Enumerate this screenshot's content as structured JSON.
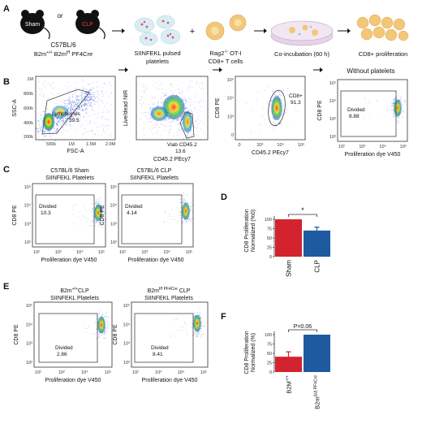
{
  "panels": {
    "A": "A",
    "B": "B",
    "C": "C",
    "D": "D",
    "E": "E",
    "F": "F"
  },
  "panelA": {
    "mouse1": "Sham",
    "or": "or",
    "mouse2": "CLP",
    "strain1": "C57BL/6",
    "strain2_base": "B2m",
    "strain2_sup1": "+/+",
    "strain2_sep": " B2m",
    "strain2_sup2": "f/f",
    "strain2_cre": " PF4Cre",
    "step2_line1": "SIINFEKL pulsed",
    "step2_line2": "platelets",
    "plus": "+",
    "step3_base": "Rag2",
    "step3_sup": "-/-",
    "step3_rest": " OT-I",
    "step3_line2": "CD8+ T cells",
    "step4": "Co-incubation (60 h)",
    "step5": "CD8+ proliferation",
    "colors": {
      "sham_mouse": "#111111",
      "clp_text": "#e8403a",
      "platelet": "#d8eef3",
      "platelet_dot": "#e04b8a",
      "tcell": "#f2c77a",
      "dish": "#e6d3e8"
    }
  },
  "panelB": {
    "plot1": {
      "ylabel": "SSC-A",
      "xlabel": "FSC-A",
      "gate_name": "Lymphoytes",
      "gate_value": "39.5",
      "yticks": [
        "1M",
        "800k",
        "600k",
        "400k",
        "200k"
      ],
      "xticks": [
        "500k",
        "1M",
        "1.5M",
        "2.0M"
      ]
    },
    "plot2": {
      "ylabel": "Live/dead NIR",
      "xlabel": "CD45.2 PEcy7",
      "gate_name": "Viab CD45.2",
      "gate_value": "13.6"
    },
    "plot3": {
      "ylabel": "CD8 PE",
      "xlabel": "CD45.2 PEcy7",
      "gate_name": "CD8+",
      "gate_value": "91.3"
    },
    "plot4": {
      "title": "Without platelets",
      "ylabel": "CD8 PE",
      "xlabel": "Proliferation dye V450",
      "gate_name": "Divided",
      "gate_value": "8.88"
    }
  },
  "panelC": {
    "plot1": {
      "title1": "C57BL/6 Sham",
      "title2": "SIINFEKL Platelets",
      "gate_name": "Divided",
      "gate_value": "10.3",
      "ylabel": "CD8 PE",
      "xlabel": "Proliferation dye V450"
    },
    "plot2": {
      "title1": "C57BL/6 CLP",
      "title2": "SIINFEKL Platelets",
      "gate_name": "Divided",
      "gate_value": "4.14",
      "ylabel": "CD8 PE",
      "xlabel": "Proliferation dye V450"
    }
  },
  "panelD": {
    "ylabel1": "CD8 Proliferation",
    "ylabel2": "Normalized (%0)",
    "significance": "*",
    "yticks": [
      "100",
      "75",
      "50",
      "25",
      "0"
    ],
    "chart_data": {
      "type": "bar",
      "categories": [
        "Sham",
        "CLP"
      ],
      "values": [
        100,
        70
      ],
      "errors": [
        0,
        9
      ],
      "ylim": [
        0,
        100
      ],
      "colors": [
        "#d2232f",
        "#1e5aa0"
      ]
    }
  },
  "panelE": {
    "plot1": {
      "title1_base": "B2m",
      "title1_sup": "+/+",
      "title1_rest": "CLP",
      "title2": "SIINFEKL Platelets",
      "gate_name": "Divided",
      "gate_value": "2.86",
      "ylabel": "CD8 PE",
      "xlabel": "Proliferation dye V450"
    },
    "plot2": {
      "title1_base": "B2m",
      "title1_sup": "f/f PF4Cre",
      "title1_rest": " CLP",
      "title2": "SIINFEKL Platelets",
      "gate_name": "Divided",
      "gate_value": "8.41",
      "ylabel": "CD8 PE",
      "xlabel": "Proliferation dye V450"
    }
  },
  "panelF": {
    "ylabel1": "CD8 Proliferation",
    "ylabel2": "Normalized (%)",
    "significance": "P=0.06",
    "yticks": [
      "100",
      "75",
      "50",
      "25",
      "0"
    ],
    "cat1_base": "B2M",
    "cat1_sup": "+/+",
    "cat2_base": "B2m",
    "cat2_sup": "Δ/Δ PF4Cre",
    "chart_data": {
      "type": "bar",
      "categories": [
        "B2M+/+",
        "B2mΔ/Δ PF4Cre"
      ],
      "values": [
        41,
        100
      ],
      "errors": [
        13,
        0
      ],
      "ylim": [
        0,
        100
      ],
      "colors": [
        "#d2232f",
        "#1e5aa0"
      ]
    }
  },
  "flow_ticks": {
    "y": [
      "10⁵",
      "10⁴",
      "10³",
      "0"
    ],
    "x": [
      "0",
      "10³",
      "10⁴",
      "10⁵"
    ],
    "y_small": [
      "10⁵",
      "10⁴",
      "10³",
      "10²"
    ],
    "x_small": [
      "10²",
      "10³",
      "10⁴",
      "10⁵"
    ]
  }
}
